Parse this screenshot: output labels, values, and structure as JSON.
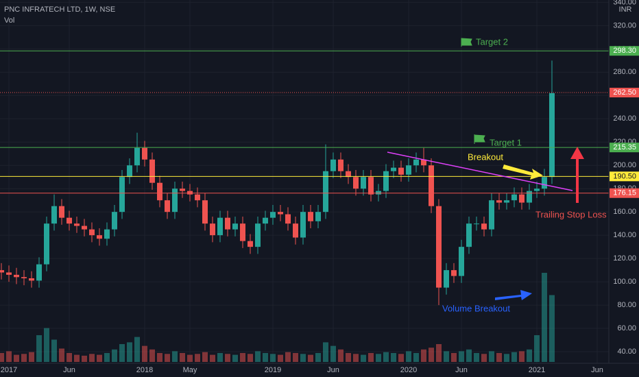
{
  "chart_data": {
    "type": "candlestick",
    "title": "PNC INFRATECH LTD, 1W, NSE",
    "volume_label": "Vol",
    "currency": "INR",
    "categories": [
      null,
      "2017",
      null,
      null,
      null,
      null,
      null,
      null,
      null,
      "Jun",
      null,
      null,
      null,
      null,
      null,
      null,
      null,
      null,
      null,
      "2018",
      null,
      null,
      null,
      null,
      null,
      "May",
      null,
      null,
      null,
      null,
      null,
      null,
      null,
      null,
      null,
      null,
      "2019",
      null,
      null,
      null,
      null,
      null,
      null,
      null,
      "Jun",
      null,
      null,
      null,
      null,
      null,
      null,
      null,
      null,
      null,
      "2020",
      null,
      null,
      null,
      null,
      null,
      null,
      "Jun",
      null,
      null,
      null,
      null,
      null,
      null,
      null,
      null,
      null,
      "2021",
      null,
      null,
      null,
      null,
      null,
      null,
      null,
      "Jun"
    ],
    "open": [
      110,
      108,
      106,
      104,
      103,
      101,
      115,
      150,
      165,
      155,
      150,
      148,
      145,
      140,
      137,
      145,
      160,
      190,
      200,
      215,
      205,
      185,
      170,
      160,
      180,
      178,
      175,
      170,
      150,
      140,
      155,
      145,
      150,
      135,
      130,
      150,
      155,
      160,
      158,
      150,
      138,
      160,
      152,
      160,
      195,
      205,
      195,
      190,
      180,
      190,
      175,
      178,
      195,
      198,
      192,
      200,
      205,
      200,
      165,
      95,
      110,
      105,
      130,
      150,
      150,
      145,
      170,
      168,
      170,
      175,
      168,
      178,
      180,
      190,
      null,
      null,
      null,
      null,
      null,
      null
    ],
    "high": [
      116,
      114,
      112,
      110,
      109,
      121,
      156,
      175,
      171,
      161,
      156,
      154,
      151,
      146,
      151,
      166,
      196,
      206,
      228,
      221,
      211,
      191,
      176,
      186,
      186,
      184,
      181,
      176,
      156,
      161,
      161,
      156,
      156,
      141,
      156,
      161,
      166,
      166,
      164,
      156,
      166,
      166,
      166,
      218,
      211,
      211,
      201,
      196,
      196,
      196,
      184,
      201,
      204,
      204,
      206,
      211,
      215,
      206,
      171,
      116,
      116,
      136,
      156,
      156,
      156,
      176,
      176,
      176,
      181,
      181,
      184,
      186,
      197,
      290,
      null,
      null,
      null,
      null,
      null,
      null
    ],
    "low": [
      102,
      100,
      98,
      97,
      95,
      95,
      109,
      144,
      149,
      144,
      142,
      139,
      134,
      131,
      131,
      139,
      154,
      184,
      194,
      199,
      179,
      164,
      154,
      154,
      172,
      169,
      164,
      144,
      134,
      134,
      139,
      139,
      129,
      124,
      124,
      144,
      149,
      152,
      144,
      132,
      132,
      146,
      146,
      154,
      189,
      189,
      184,
      174,
      174,
      169,
      169,
      172,
      189,
      186,
      186,
      194,
      194,
      159,
      80,
      89,
      99,
      99,
      124,
      144,
      139,
      139,
      162,
      162,
      164,
      162,
      162,
      172,
      174,
      184,
      null,
      null,
      null,
      null,
      null,
      null
    ],
    "close": [
      108,
      106,
      104,
      103,
      101,
      115,
      150,
      165,
      155,
      150,
      148,
      145,
      140,
      137,
      145,
      160,
      190,
      200,
      215,
      205,
      185,
      170,
      160,
      180,
      178,
      175,
      170,
      150,
      140,
      155,
      145,
      150,
      135,
      130,
      150,
      155,
      160,
      158,
      150,
      138,
      160,
      152,
      160,
      195,
      205,
      195,
      190,
      180,
      190,
      175,
      178,
      195,
      198,
      192,
      200,
      205,
      200,
      165,
      95,
      110,
      105,
      130,
      150,
      150,
      145,
      170,
      168,
      170,
      175,
      168,
      178,
      180,
      190,
      262,
      null,
      null,
      null,
      null,
      null,
      null
    ],
    "volume": [
      10,
      12,
      8,
      9,
      11,
      30,
      38,
      25,
      15,
      10,
      8,
      7,
      9,
      8,
      10,
      14,
      20,
      22,
      28,
      18,
      14,
      10,
      9,
      12,
      10,
      8,
      9,
      11,
      8,
      10,
      9,
      8,
      10,
      9,
      12,
      10,
      9,
      8,
      11,
      10,
      9,
      8,
      10,
      22,
      18,
      14,
      10,
      9,
      8,
      10,
      9,
      11,
      10,
      9,
      12,
      10,
      14,
      16,
      20,
      12,
      10,
      12,
      14,
      10,
      9,
      12,
      10,
      9,
      11,
      12,
      14,
      30,
      100,
      75,
      null,
      null,
      null,
      null,
      null,
      null
    ],
    "up_color": "#26a69a",
    "down_color": "#ef5350",
    "ylim": [
      30,
      342
    ],
    "yticks": [
      {
        "value": 40,
        "label": "40.00"
      },
      {
        "value": 60,
        "label": "60.00"
      },
      {
        "value": 80,
        "label": "80.00"
      },
      {
        "value": 100,
        "label": "100.00"
      },
      {
        "value": 120,
        "label": "120.00"
      },
      {
        "value": 140,
        "label": "140.00"
      },
      {
        "value": 160,
        "label": "160.00"
      },
      {
        "value": 180,
        "label": "180.00"
      },
      {
        "value": 200,
        "label": "200.00"
      },
      {
        "value": 220,
        "label": "220.00"
      },
      {
        "value": 240,
        "label": "240.00"
      },
      {
        "value": 260,
        "label": "260.00"
      },
      {
        "value": 280,
        "label": "280.00"
      },
      {
        "value": 300,
        "label": "300.00"
      },
      {
        "value": 320,
        "label": "320.00"
      },
      {
        "value": 340,
        "label": "340.00"
      }
    ],
    "grid": true,
    "levels": [
      {
        "value": 298.3,
        "label": "298.30",
        "color": "#4caf50"
      },
      {
        "value": 262.5,
        "label": "262.50",
        "color": "#ef5350",
        "dashed": true
      },
      {
        "value": 215.35,
        "label": "215.35",
        "color": "#4caf50"
      },
      {
        "value": 190.5,
        "label": "190.50",
        "color": "#ffeb3b"
      },
      {
        "value": 176.15,
        "label": "176.15",
        "color": "#ef5350"
      }
    ],
    "annotations": [
      {
        "text": "Target 2",
        "color": "#4caf50"
      },
      {
        "text": "Target 1",
        "color": "#4caf50"
      },
      {
        "text": "Breakout",
        "color": "#ffeb3b"
      },
      {
        "text": "Trailing Stop Loss",
        "color": "#ef5350"
      },
      {
        "text": "Volume Breakout",
        "color": "#2962ff"
      }
    ]
  }
}
